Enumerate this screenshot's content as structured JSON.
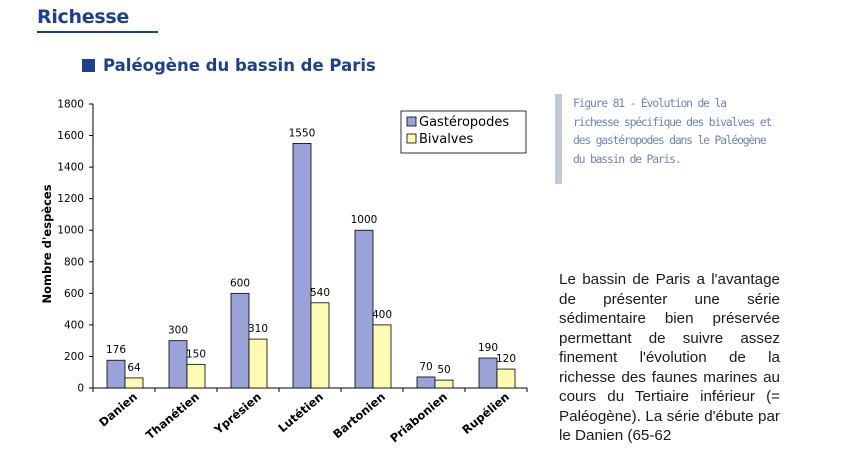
{
  "page": {
    "heading": "Richesse",
    "section_title": "Paléogène du bassin de Paris",
    "caption": "Figure 81 - Évolution de la richesse spécifique des bivalves et des gastéropodes dans le Paléogène du bassin de Paris.",
    "body_text": "Le bassin de Paris a l'avantage de présenter une série sédimentaire bien préservée permettant de suivre assez finement l'évolution de la richesse des faunes marines au cours du Tertiaire inférieur (= Paléogène). La série d'ébute par le Danien (65-62"
  },
  "colors": {
    "heading": "#1d3f8f",
    "gasteropodes": "#9aa3d8",
    "bivalves": "#fdfbb1",
    "caption_text": "#6f85b0",
    "caption_bar": "#c2cad9"
  },
  "chart_data": {
    "type": "bar",
    "ylabel": "Nombre d'espèces",
    "ylim": [
      0,
      1800
    ],
    "yticks": [
      0,
      200,
      400,
      600,
      800,
      1000,
      1200,
      1400,
      1600,
      1800
    ],
    "categories": [
      "Danien",
      "Thanétien",
      "Yprésien",
      "Lutétien",
      "Bartonien",
      "Priabonien",
      "Rupélien"
    ],
    "series": [
      {
        "name": "Gastéropodes",
        "values": [
          176,
          300,
          600,
          1550,
          1000,
          70,
          190
        ],
        "color": "#9aa3d8"
      },
      {
        "name": "Bivalves",
        "values": [
          64,
          150,
          310,
          540,
          400,
          50,
          120
        ],
        "color": "#fdfbb1"
      }
    ],
    "legend": "top-right",
    "data_labels": true,
    "grid": false
  }
}
